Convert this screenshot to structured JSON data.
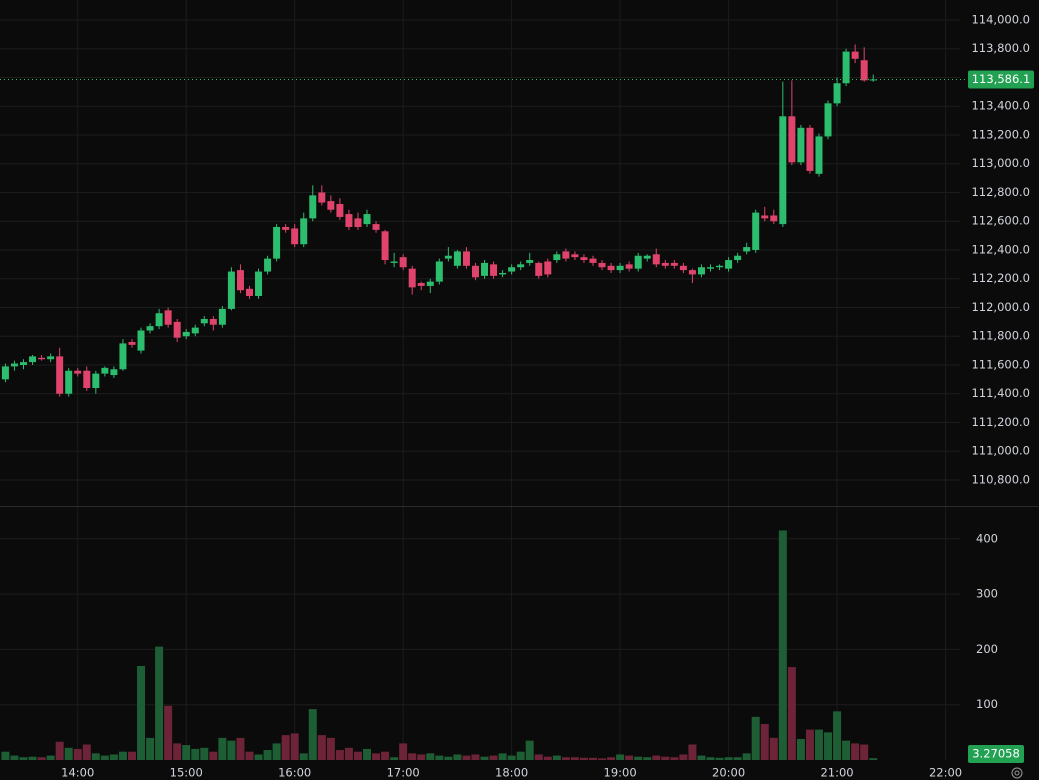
{
  "chart_data": {
    "type": "candlestick",
    "x": [
      "13:20",
      "13:25",
      "13:30",
      "13:35",
      "13:40",
      "13:45",
      "13:50",
      "13:55",
      "14:00",
      "14:05",
      "14:10",
      "14:15",
      "14:20",
      "14:25",
      "14:30",
      "14:35",
      "14:40",
      "14:45",
      "14:50",
      "14:55",
      "15:00",
      "15:05",
      "15:10",
      "15:15",
      "15:20",
      "15:25",
      "15:30",
      "15:35",
      "15:40",
      "15:45",
      "15:50",
      "15:55",
      "16:00",
      "16:05",
      "16:10",
      "16:15",
      "16:20",
      "16:25",
      "16:30",
      "16:35",
      "16:40",
      "16:45",
      "16:50",
      "16:55",
      "17:00",
      "17:05",
      "17:10",
      "17:15",
      "17:20",
      "17:25",
      "17:30",
      "17:35",
      "17:40",
      "17:45",
      "17:50",
      "17:55",
      "18:00",
      "18:05",
      "18:10",
      "18:15",
      "18:20",
      "18:25",
      "18:30",
      "18:35",
      "18:40",
      "18:45",
      "18:50",
      "18:55",
      "19:00",
      "19:05",
      "19:10",
      "19:15",
      "19:20",
      "19:25",
      "19:30",
      "19:35",
      "19:40",
      "19:45",
      "19:50",
      "19:55",
      "20:00",
      "20:05",
      "20:10",
      "20:15",
      "20:20",
      "20:25",
      "20:30",
      "20:35",
      "20:40",
      "20:45",
      "20:50",
      "20:55",
      "21:00",
      "21:05",
      "21:10",
      "21:15",
      "21:20"
    ],
    "open": [
      111500,
      111590,
      111600,
      111620,
      111650,
      111640,
      111660,
      111400,
      111560,
      111560,
      111440,
      111540,
      111530,
      111570,
      111760,
      111700,
      111840,
      111870,
      111980,
      111900,
      111800,
      111820,
      111890,
      111920,
      111880,
      111990,
      112260,
      112130,
      112080,
      112250,
      112340,
      112560,
      112550,
      112440,
      112620,
      112800,
      112740,
      112720,
      112650,
      112620,
      112580,
      112580,
      112530,
      112310,
      112350,
      112270,
      112170,
      112150,
      112180,
      112340,
      112290,
      112390,
      112290,
      112220,
      112300,
      112230,
      112250,
      112280,
      112310,
      112310,
      112320,
      112330,
      112390,
      112370,
      112350,
      112340,
      112310,
      112290,
      112260,
      112300,
      112270,
      112340,
      112370,
      112310,
      112310,
      112290,
      112260,
      112230,
      112270,
      112280,
      112270,
      112330,
      112390,
      112400,
      112640,
      112640,
      112580,
      113330,
      113010,
      113250,
      112930,
      113190,
      113420,
      113560,
      113780,
      113720,
      113580
    ],
    "high": [
      111610,
      111630,
      111640,
      111670,
      111670,
      111680,
      111720,
      111580,
      111580,
      111590,
      111560,
      111590,
      111590,
      111780,
      111780,
      111860,
      111890,
      111990,
      112000,
      111920,
      111850,
      111880,
      111940,
      111940,
      112010,
      112280,
      112300,
      112150,
      112270,
      112360,
      112580,
      112580,
      112580,
      112660,
      112850,
      112850,
      112780,
      112760,
      112680,
      112660,
      112680,
      112600,
      112540,
      112380,
      112370,
      112290,
      112180,
      112200,
      112340,
      112420,
      112400,
      112420,
      112310,
      112330,
      112320,
      112260,
      112300,
      112320,
      112380,
      112320,
      112340,
      112390,
      112410,
      112390,
      112370,
      112360,
      112330,
      112310,
      112310,
      112320,
      112380,
      112370,
      112410,
      112330,
      112330,
      112310,
      112270,
      112300,
      112300,
      112300,
      112350,
      112380,
      112450,
      112680,
      112700,
      112680,
      113570,
      113580,
      113270,
      113270,
      113210,
      113440,
      113600,
      113800,
      113830,
      113810,
      113620
    ],
    "low": [
      111480,
      111560,
      111570,
      111600,
      111630,
      111620,
      111380,
      111380,
      111520,
      111420,
      111400,
      111520,
      111510,
      111560,
      111720,
      111680,
      111820,
      111850,
      111860,
      111760,
      111780,
      111800,
      111870,
      111840,
      111860,
      111980,
      112100,
      112060,
      112060,
      112230,
      112320,
      112520,
      112420,
      112420,
      112600,
      112710,
      112660,
      112610,
      112540,
      112540,
      112560,
      112520,
      112300,
      112280,
      112260,
      112090,
      112120,
      112100,
      112160,
      112320,
      112270,
      112270,
      112190,
      112200,
      112200,
      112210,
      112230,
      112260,
      112290,
      112200,
      112210,
      112310,
      112320,
      112330,
      112310,
      112290,
      112260,
      112240,
      112240,
      112250,
      112250,
      112320,
      112280,
      112270,
      112270,
      112240,
      112170,
      112210,
      112250,
      112260,
      112250,
      112310,
      112370,
      112380,
      112600,
      112580,
      112560,
      112990,
      112990,
      112930,
      112910,
      113170,
      113400,
      113540,
      113700,
      113570,
      113570
    ],
    "close": [
      111590,
      111610,
      111620,
      111660,
      111640,
      111660,
      111400,
      111560,
      111540,
      111440,
      111540,
      111580,
      111570,
      111750,
      111740,
      111840,
      111870,
      111960,
      111880,
      111790,
      111830,
      111860,
      111920,
      111880,
      111990,
      112250,
      112120,
      112080,
      112250,
      112340,
      112560,
      112540,
      112440,
      112620,
      112780,
      112730,
      112680,
      112630,
      112560,
      112560,
      112650,
      112540,
      112330,
      112320,
      112280,
      112140,
      112150,
      112180,
      112320,
      112360,
      112390,
      112290,
      112210,
      112310,
      112220,
      112240,
      112280,
      112300,
      112330,
      112220,
      112230,
      112370,
      112340,
      112350,
      112330,
      112310,
      112280,
      112260,
      112290,
      112270,
      112360,
      112360,
      112300,
      112290,
      112290,
      112260,
      112230,
      112280,
      112280,
      112290,
      112330,
      112360,
      112420,
      112660,
      112620,
      112600,
      113330,
      113010,
      113250,
      112950,
      113190,
      113420,
      113560,
      113780,
      113730,
      113580,
      113586.1
    ],
    "volume": [
      15,
      8,
      5,
      6,
      5,
      8,
      33,
      22,
      20,
      28,
      12,
      8,
      10,
      15,
      15,
      170,
      40,
      205,
      98,
      30,
      27,
      20,
      22,
      15,
      40,
      35,
      40,
      15,
      10,
      18,
      30,
      45,
      48,
      12,
      92,
      45,
      40,
      18,
      22,
      15,
      20,
      12,
      15,
      5,
      30,
      12,
      10,
      12,
      8,
      6,
      10,
      8,
      10,
      6,
      8,
      12,
      8,
      15,
      35,
      10,
      6,
      8,
      5,
      5,
      4,
      4,
      3,
      5,
      10,
      8,
      6,
      5,
      8,
      6,
      5,
      10,
      28,
      8,
      5,
      4,
      5,
      5,
      12,
      78,
      65,
      40,
      415,
      168,
      38,
      55,
      55,
      50,
      88,
      35,
      30,
      28,
      3.27058
    ],
    "xlim": [
      "13:17",
      "22:08"
    ],
    "xticks": [
      "14:00",
      "15:00",
      "16:00",
      "17:00",
      "18:00",
      "19:00",
      "20:00",
      "21:00",
      "22:00"
    ],
    "ylim": [
      110626,
      114139
    ],
    "yticks": [
      {
        "value": 110800,
        "label": "110,800.0"
      },
      {
        "value": 111000,
        "label": "111,000.0"
      },
      {
        "value": 111200,
        "label": "111,200.0"
      },
      {
        "value": 111400,
        "label": "111,400.0"
      },
      {
        "value": 111600,
        "label": "111,600.0"
      },
      {
        "value": 111800,
        "label": "111,800.0"
      },
      {
        "value": 112000,
        "label": "112,000.0"
      },
      {
        "value": 112200,
        "label": "112,200.0"
      },
      {
        "value": 112400,
        "label": "112,400.0"
      },
      {
        "value": 112600,
        "label": "112,600.0"
      },
      {
        "value": 112800,
        "label": "112,800.0"
      },
      {
        "value": 113000,
        "label": "113,000.0"
      },
      {
        "value": 113200,
        "label": "113,200.0"
      },
      {
        "value": 113400,
        "label": "113,400.0"
      },
      {
        "value": 113600,
        "label": "113,600.0"
      },
      {
        "value": 113800,
        "label": "113,800.0"
      },
      {
        "value": 114000,
        "label": "114,000.0"
      }
    ],
    "y2lim": [
      0,
      452
    ],
    "y2ticks": [
      100,
      200,
      300,
      400
    ],
    "last_price": {
      "value": 113586.1,
      "label": "113,586.1"
    },
    "up_color": "#2dbd6e",
    "down_color": "#e0446c",
    "volume_up_color": "#1d5e35",
    "volume_down_color": "#6e2438",
    "grid": true
  }
}
